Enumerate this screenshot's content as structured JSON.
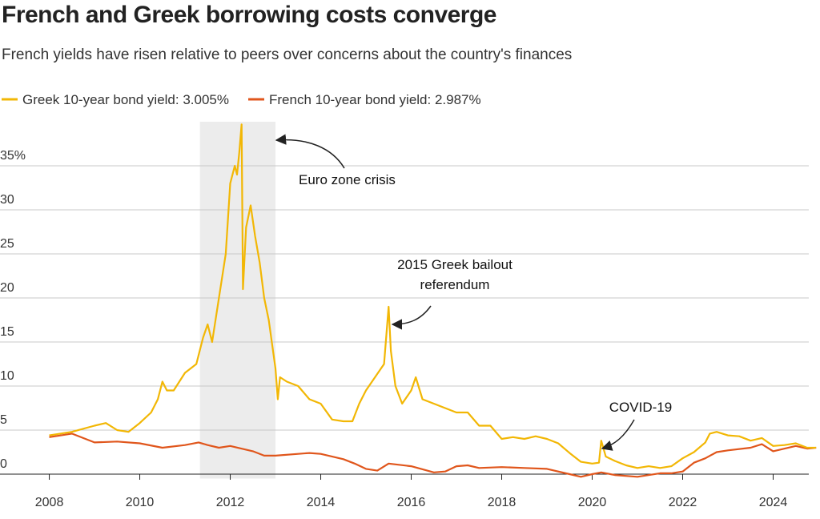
{
  "chart_data": {
    "type": "line",
    "title": "French and Greek borrowing costs converge",
    "subtitle": "French yields have risen relative to peers over concerns about the country's finances",
    "xlim": [
      2007.3,
      2025.0
    ],
    "xticks": [
      2008,
      2010,
      2012,
      2014,
      2016,
      2018,
      2020,
      2022,
      2024
    ],
    "ylim": [
      -0.5,
      40
    ],
    "yticks": [
      0,
      5,
      10,
      15,
      20,
      25,
      30,
      {
        "value": 35,
        "label": "35%"
      }
    ],
    "grid": true,
    "legend": "top-left",
    "shaded_range": [
      2011.33,
      2013.0
    ],
    "annotations": [
      {
        "lines": [
          "Euro zone crisis"
        ]
      },
      {
        "lines": [
          "2015 Greek bailout",
          "referendum"
        ]
      },
      {
        "lines": [
          "COVID-19"
        ]
      }
    ],
    "series": [
      {
        "name": "Greek 10-year bond yield: 3.005%",
        "color": "#f2b705",
        "x": [
          2008.0,
          2008.5,
          2009.0,
          2009.25,
          2009.5,
          2009.75,
          2010.0,
          2010.25,
          2010.4,
          2010.5,
          2010.6,
          2010.75,
          2011.0,
          2011.25,
          2011.4,
          2011.5,
          2011.6,
          2011.75,
          2011.9,
          2012.0,
          2012.1,
          2012.15,
          2012.2,
          2012.25,
          2012.28,
          2012.35,
          2012.45,
          2012.55,
          2012.65,
          2012.75,
          2012.85,
          2013.0,
          2013.05,
          2013.1,
          2013.25,
          2013.5,
          2013.75,
          2014.0,
          2014.25,
          2014.5,
          2014.7,
          2014.85,
          2015.0,
          2015.2,
          2015.4,
          2015.5,
          2015.55,
          2015.65,
          2015.8,
          2016.0,
          2016.1,
          2016.25,
          2016.5,
          2016.75,
          2017.0,
          2017.25,
          2017.5,
          2017.75,
          2018.0,
          2018.25,
          2018.5,
          2018.75,
          2019.0,
          2019.25,
          2019.5,
          2019.75,
          2020.0,
          2020.15,
          2020.2,
          2020.3,
          2020.5,
          2020.75,
          2021.0,
          2021.25,
          2021.5,
          2021.75,
          2022.0,
          2022.25,
          2022.5,
          2022.6,
          2022.75,
          2023.0,
          2023.25,
          2023.5,
          2023.75,
          2024.0,
          2024.25,
          2024.5,
          2024.75,
          2024.95
        ],
        "values": [
          4.4,
          4.8,
          5.5,
          5.8,
          5.0,
          4.8,
          5.8,
          7.0,
          8.5,
          10.5,
          9.5,
          9.5,
          11.5,
          12.5,
          15.5,
          17.0,
          15.0,
          20.0,
          25.0,
          33.0,
          35.0,
          34.0,
          36.5,
          39.7,
          21.0,
          28.0,
          30.5,
          27.0,
          24.0,
          20.0,
          17.5,
          12.0,
          8.5,
          11.0,
          10.5,
          10.0,
          8.5,
          8.0,
          6.2,
          6.0,
          6.0,
          8.0,
          9.5,
          11.0,
          12.5,
          19.0,
          14.0,
          10.0,
          8.0,
          9.5,
          11.0,
          8.5,
          8.0,
          7.5,
          7.0,
          7.0,
          5.5,
          5.5,
          4.0,
          4.2,
          4.0,
          4.3,
          4.0,
          3.5,
          2.4,
          1.4,
          1.2,
          1.3,
          3.8,
          2.0,
          1.5,
          1.0,
          0.7,
          0.9,
          0.7,
          0.9,
          1.8,
          2.5,
          3.6,
          4.6,
          4.8,
          4.4,
          4.3,
          3.8,
          4.1,
          3.2,
          3.3,
          3.5,
          3.0,
          3.0
        ]
      },
      {
        "name": "French 10-year bond yield: 2.987%",
        "color": "#e0561c",
        "x": [
          2008.0,
          2008.5,
          2009.0,
          2009.5,
          2010.0,
          2010.5,
          2011.0,
          2011.3,
          2011.5,
          2011.75,
          2012.0,
          2012.5,
          2012.75,
          2013.0,
          2013.5,
          2013.75,
          2014.0,
          2014.5,
          2014.75,
          2015.0,
          2015.25,
          2015.5,
          2016.0,
          2016.5,
          2016.75,
          2017.0,
          2017.25,
          2017.5,
          2018.0,
          2018.5,
          2019.0,
          2019.5,
          2019.75,
          2020.0,
          2020.2,
          2020.5,
          2021.0,
          2021.5,
          2021.75,
          2022.0,
          2022.25,
          2022.5,
          2022.75,
          2023.0,
          2023.5,
          2023.75,
          2024.0,
          2024.5,
          2024.75,
          2024.95
        ],
        "values": [
          4.2,
          4.6,
          3.6,
          3.7,
          3.5,
          3.0,
          3.3,
          3.6,
          3.3,
          3.0,
          3.2,
          2.6,
          2.1,
          2.1,
          2.3,
          2.4,
          2.3,
          1.7,
          1.2,
          0.6,
          0.4,
          1.2,
          0.9,
          0.2,
          0.3,
          0.9,
          1.0,
          0.7,
          0.8,
          0.7,
          0.6,
          0.0,
          -0.3,
          0.0,
          0.2,
          -0.1,
          -0.3,
          0.1,
          0.1,
          0.3,
          1.3,
          1.8,
          2.5,
          2.7,
          3.0,
          3.4,
          2.6,
          3.2,
          2.9,
          3.0
        ]
      }
    ]
  }
}
